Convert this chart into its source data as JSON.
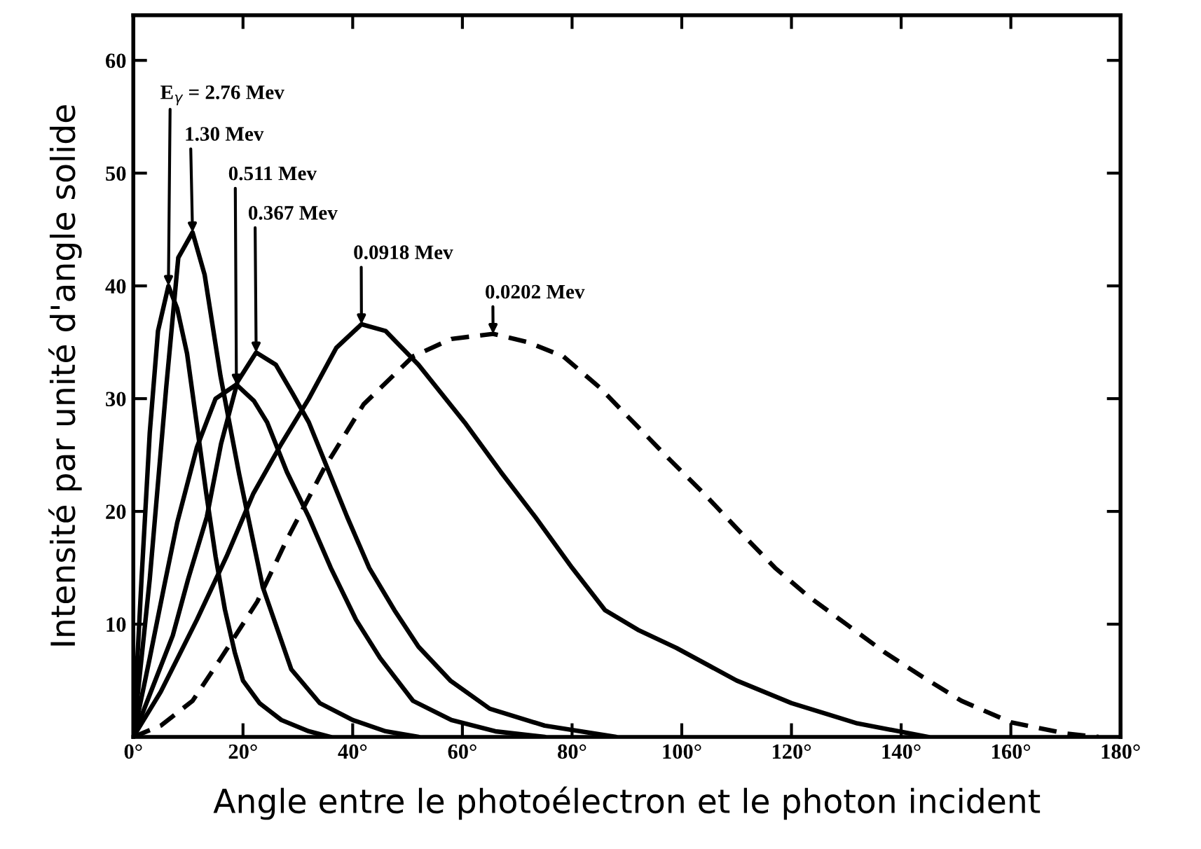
{
  "chart_data": {
    "type": "line",
    "xlabel": "Angle entre le photoélectron et le photon incident",
    "ylabel": "Intensité par unité d'angle solide",
    "xlim": [
      0,
      180
    ],
    "ylim": [
      0,
      64
    ],
    "xticks": [
      {
        "value": 0,
        "label": "0°"
      },
      {
        "value": 20,
        "label": "20°"
      },
      {
        "value": 40,
        "label": "40°"
      },
      {
        "value": 60,
        "label": "60°"
      },
      {
        "value": 80,
        "label": "80°"
      },
      {
        "value": 100,
        "label": "100°"
      },
      {
        "value": 120,
        "label": "120°"
      },
      {
        "value": 140,
        "label": "140°"
      },
      {
        "value": 160,
        "label": "160°"
      },
      {
        "value": 180,
        "label": "180°"
      }
    ],
    "yticks": [
      10,
      20,
      30,
      40,
      50,
      60
    ],
    "grid": false,
    "legend": false,
    "marker": "none",
    "series": [
      {
        "name": "E$_{γ}$ = 2.76 Mev",
        "color": "#000000",
        "line_style": "solid",
        "x": [
          0,
          1.5,
          3,
          4.5,
          6.4,
          8,
          9.8,
          11.5,
          13.3,
          15,
          16.7,
          18.5,
          20,
          23,
          27,
          32,
          36
        ],
        "values": [
          0,
          14,
          27,
          36,
          40,
          38,
          34,
          28,
          21.6,
          16,
          11.3,
          7.5,
          5,
          3,
          1.5,
          0.5,
          0
        ]
      },
      {
        "name": "1.30 Mev",
        "color": "#000000",
        "line_style": "solid",
        "x": [
          0,
          3,
          6,
          8.2,
          10.8,
          13,
          15.9,
          19.3,
          23.6,
          28.8,
          34,
          40,
          46,
          52
        ],
        "values": [
          0,
          14,
          31,
          42.5,
          44.75,
          41,
          32,
          23.3,
          13.3,
          6,
          3,
          1.5,
          0.5,
          0
        ]
      },
      {
        "name": "0.511 Mev",
        "color": "#000000",
        "line_style": "solid",
        "x": [
          0,
          3,
          5.6,
          8,
          11.6,
          15,
          18.8,
          22,
          24.4,
          28,
          32,
          36,
          40.6,
          45,
          51,
          58,
          66,
          75
        ],
        "values": [
          0,
          7,
          13.3,
          19,
          25.7,
          30,
          31.25,
          29.8,
          27.9,
          23.5,
          19.5,
          15,
          10.4,
          7,
          3.2,
          1.5,
          0.5,
          0
        ]
      },
      {
        "name": "0.367 Mev",
        "color": "#000000",
        "line_style": "solid",
        "x": [
          0,
          4,
          7.2,
          10,
          13.4,
          16,
          19,
          22.4,
          26,
          29,
          32,
          35.5,
          39,
          43,
          47.6,
          52,
          57.8,
          65,
          75,
          88
        ],
        "values": [
          0,
          5,
          9,
          14,
          19.5,
          26,
          31.5,
          34.1,
          33,
          30.5,
          27.9,
          23.7,
          19.5,
          15,
          11.25,
          8,
          5,
          2.5,
          1,
          0
        ]
      },
      {
        "name": "0.0918 Mev",
        "color": "#000000",
        "line_style": "solid",
        "x": [
          0,
          5,
          11.6,
          17,
          21.9,
          27,
          32,
          37,
          41.6,
          46,
          52,
          60.4,
          67,
          73.3,
          80,
          86,
          92,
          99,
          110,
          120,
          132,
          145
        ],
        "values": [
          0,
          4,
          10.4,
          16,
          21.6,
          26,
          30,
          34.5,
          36.6,
          36,
          33,
          27.9,
          23.5,
          19.5,
          15,
          11.25,
          9.5,
          7.9,
          5,
          3,
          1.2,
          0
        ]
      },
      {
        "name": "0.0202 Mev",
        "color": "#000000",
        "line_style": "dashed",
        "x": [
          0,
          5,
          10.8,
          16,
          22.6,
          28,
          34.7,
          42,
          51,
          58,
          65.6,
          72,
          78.4,
          85,
          92,
          98,
          104,
          111,
          117,
          123,
          130,
          137,
          144,
          151,
          160,
          170,
          176
        ],
        "values": [
          0,
          1,
          3.2,
          7,
          12,
          17.5,
          23.75,
          29.5,
          33.75,
          35.3,
          35.75,
          35,
          33.75,
          31,
          27.5,
          24.5,
          21.6,
          18,
          15,
          12.5,
          10,
          7.5,
          5.3,
          3.2,
          1.3,
          0.3,
          0
        ]
      }
    ]
  }
}
